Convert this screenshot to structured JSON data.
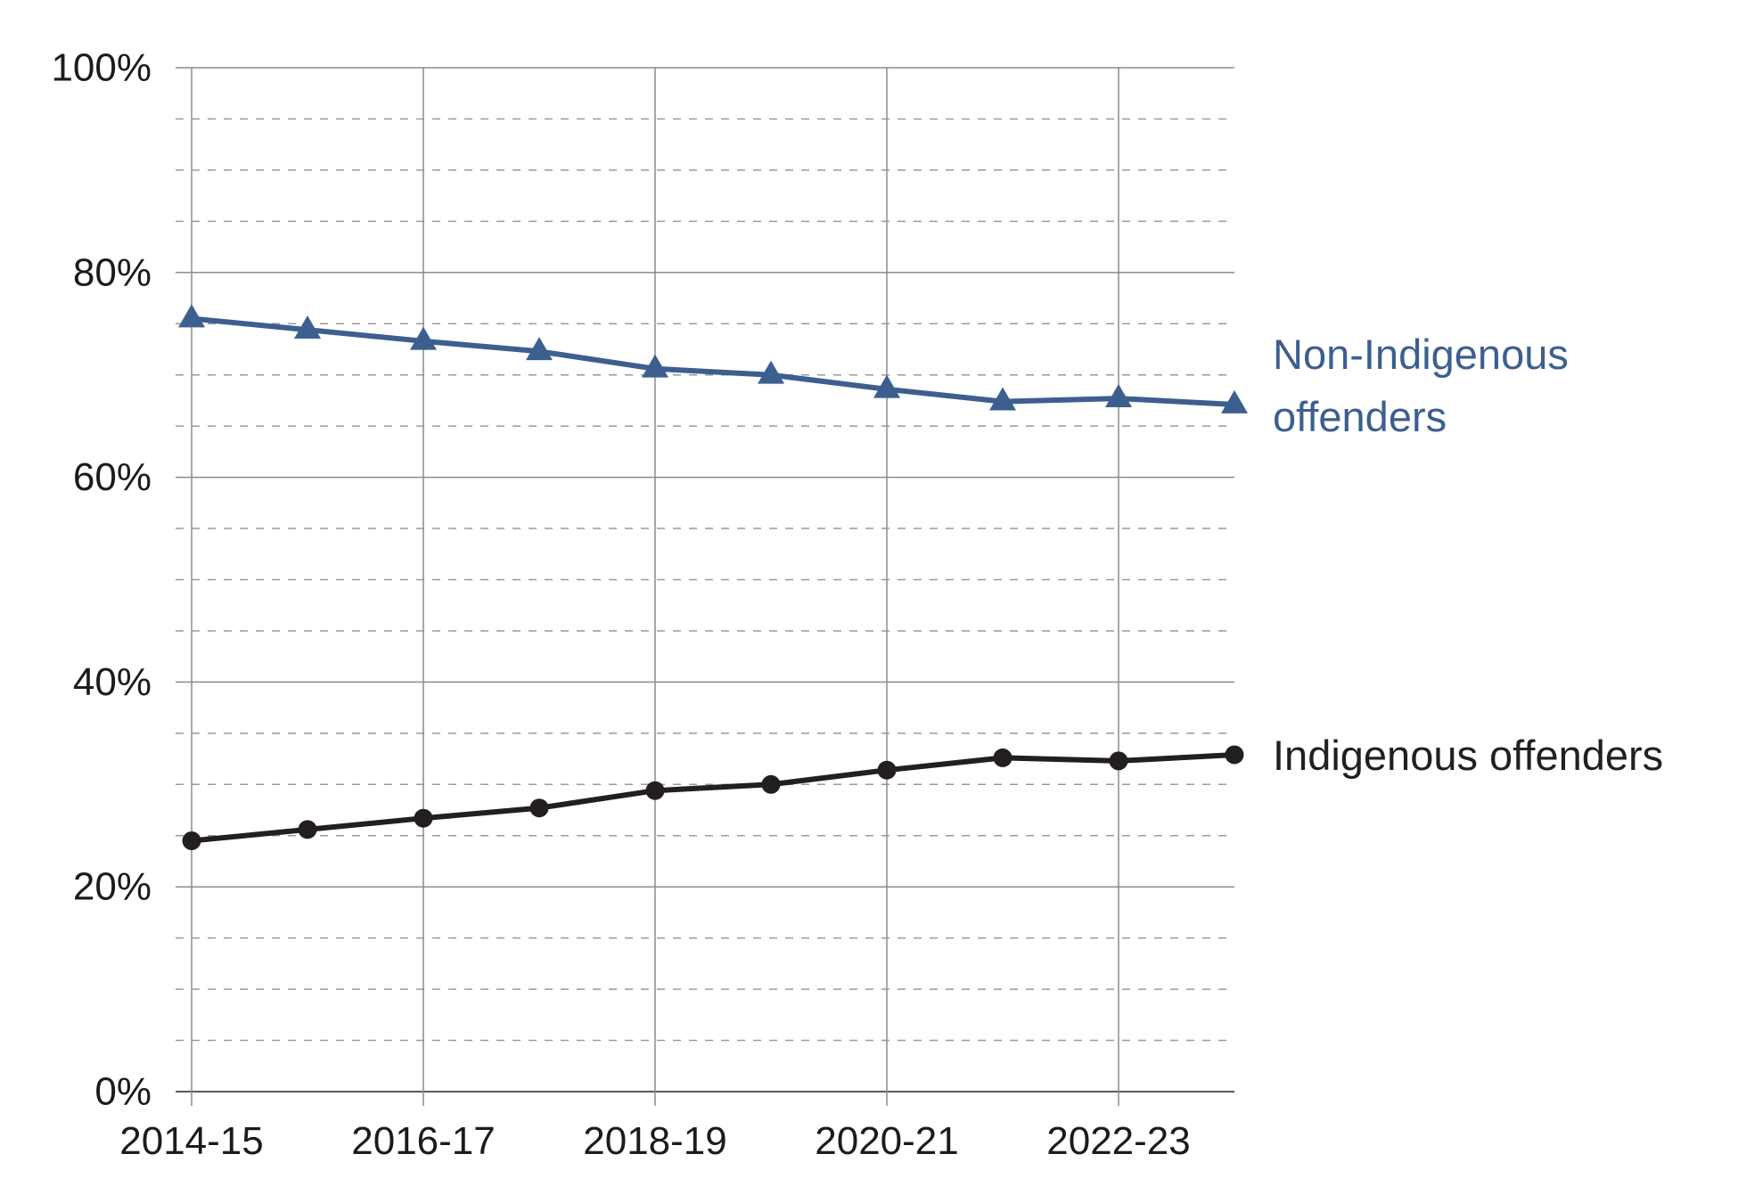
{
  "chart_data": {
    "type": "line",
    "x": [
      "2014-15",
      "2015-16",
      "2016-17",
      "2017-18",
      "2018-19",
      "2019-20",
      "2020-21",
      "2021-22",
      "2022-23",
      "2023-24"
    ],
    "x_tick_labels": [
      "2014-15",
      "2016-17",
      "2018-19",
      "2020-21",
      "2022-23"
    ],
    "y_tick_labels": [
      "0%",
      "20%",
      "40%",
      "60%",
      "80%",
      "100%"
    ],
    "ylim": [
      0,
      100
    ],
    "grid": "major solid, minor dashed",
    "series": [
      {
        "name_lines": [
          "Non-Indigenous",
          "offenders"
        ],
        "marker": "triangle",
        "color": "#3d5f8f",
        "values": [
          75.5,
          74.4,
          73.3,
          72.3,
          70.6,
          70.0,
          68.6,
          67.4,
          67.7,
          67.1
        ]
      },
      {
        "name_lines": [
          "Indigenous offenders"
        ],
        "marker": "circle",
        "color": "#231f20",
        "values": [
          24.5,
          25.6,
          26.7,
          27.7,
          29.4,
          30.0,
          31.4,
          32.6,
          32.3,
          32.9
        ]
      }
    ]
  }
}
